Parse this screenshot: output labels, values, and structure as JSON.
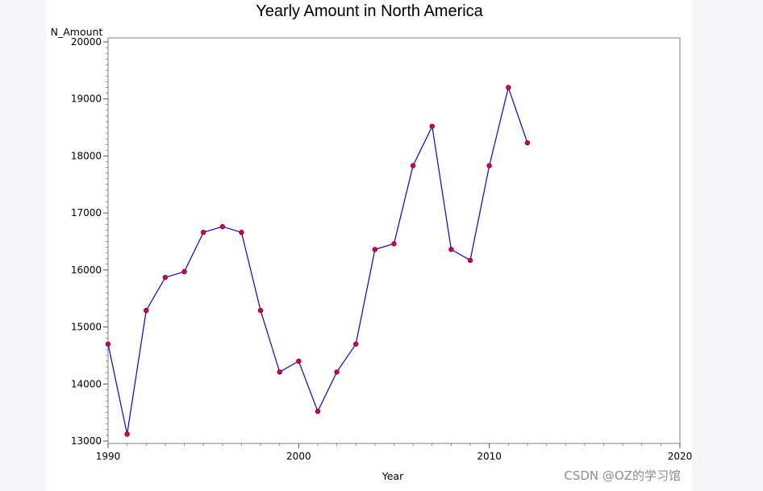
{
  "chart_data": {
    "type": "line",
    "title": "Yearly Amount in North America",
    "xlabel": "Year",
    "ylabel": "N_Amount",
    "xlim": [
      1990,
      2020
    ],
    "ylim": [
      13000,
      20000
    ],
    "x_ticks": [
      1990,
      2000,
      2010,
      2020
    ],
    "y_ticks": [
      13000,
      14000,
      15000,
      16000,
      17000,
      18000,
      19000,
      20000
    ],
    "grid": false,
    "legend": "none",
    "series": [
      {
        "x": [
          1990,
          1991,
          1992,
          1993,
          1994,
          1995,
          1996,
          1997,
          1998,
          1999,
          2000,
          2001,
          2002,
          2003,
          2004,
          2005,
          2006,
          2007,
          2008,
          2009,
          2010,
          2011,
          2012
        ],
        "values": [
          14700,
          13120,
          15290,
          15870,
          15970,
          16660,
          16760,
          16660,
          15290,
          14210,
          14400,
          13520,
          14210,
          14700,
          16360,
          16460,
          17830,
          18520,
          16360,
          16170,
          17830,
          19200,
          18230
        ]
      }
    ],
    "colors": {
      "line": "#0000ff",
      "marker": "#e0003c",
      "marker_edge": "#7a0030",
      "frame": "#808080"
    }
  },
  "watermark": "CSDN @OZ的学习馆"
}
